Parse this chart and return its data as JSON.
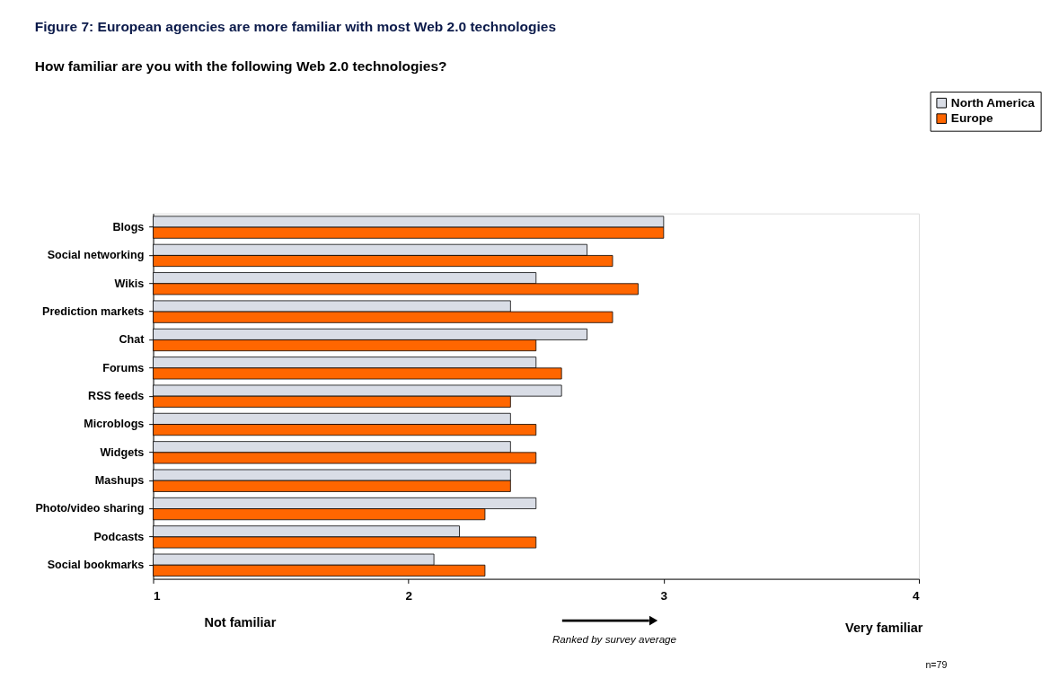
{
  "chart_data": {
    "type": "bar",
    "orientation": "horizontal",
    "title": "Figure 7:        European agencies are more familiar with most Web 2.0 technologies",
    "subtitle": "How familiar are you with the following Web 2.0 technologies?",
    "categories": [
      "Blogs",
      "Social networking",
      "Wikis",
      "Prediction markets",
      "Chat",
      "Forums",
      "RSS feeds",
      "Microblogs",
      "Widgets",
      "Mashups",
      "Photo/video sharing",
      "Podcasts",
      "Social bookmarks"
    ],
    "series": [
      {
        "name": "North America",
        "color": "#d9dde6",
        "values": [
          3.0,
          2.7,
          2.5,
          2.4,
          2.7,
          2.5,
          2.6,
          2.4,
          2.4,
          2.4,
          2.5,
          2.2,
          2.1
        ]
      },
      {
        "name": "Europe",
        "color": "#ff6600",
        "values": [
          3.0,
          2.8,
          2.9,
          2.8,
          2.5,
          2.6,
          2.4,
          2.5,
          2.5,
          2.4,
          2.3,
          2.5,
          2.3
        ]
      }
    ],
    "xlim": [
      1,
      4
    ],
    "xticks": [
      1,
      2,
      3,
      4
    ],
    "grid": false,
    "legend": "top right",
    "annotations": [
      "Not familiar",
      "Very familiar",
      "Ranked by survey average",
      "n=79"
    ]
  }
}
